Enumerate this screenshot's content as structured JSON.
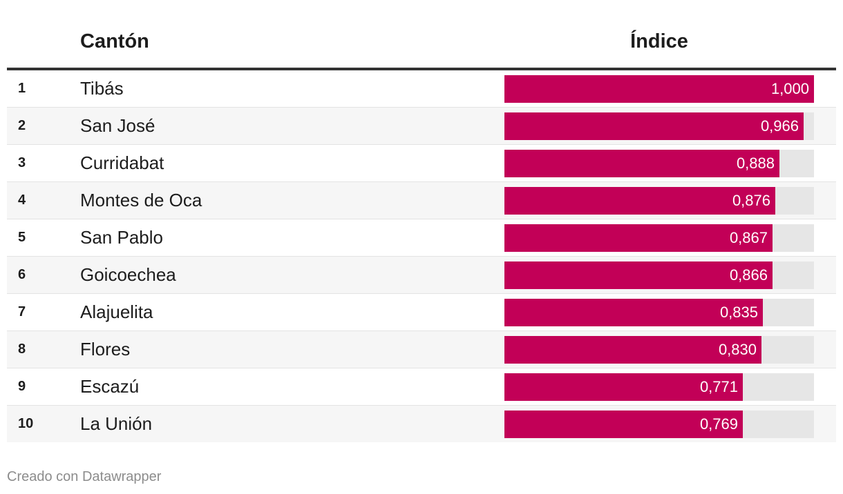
{
  "chart_data": {
    "type": "table",
    "columns": [
      "",
      "Cantón",
      "Índice"
    ],
    "xlim": [
      0,
      1
    ],
    "bar_color": "#c20057",
    "track_color": "#e6e6e6",
    "rows": [
      {
        "rank": "1",
        "name": "Tibás",
        "value": 1.0,
        "label": "1,000"
      },
      {
        "rank": "2",
        "name": "San José",
        "value": 0.966,
        "label": "0,966"
      },
      {
        "rank": "3",
        "name": "Curridabat",
        "value": 0.888,
        "label": "0,888"
      },
      {
        "rank": "4",
        "name": "Montes de Oca",
        "value": 0.876,
        "label": "0,876"
      },
      {
        "rank": "5",
        "name": "San Pablo",
        "value": 0.867,
        "label": "0,867"
      },
      {
        "rank": "6",
        "name": "Goicoechea",
        "value": 0.866,
        "label": "0,866"
      },
      {
        "rank": "7",
        "name": "Alajuelita",
        "value": 0.835,
        "label": "0,835"
      },
      {
        "rank": "8",
        "name": "Flores",
        "value": 0.83,
        "label": "0,830"
      },
      {
        "rank": "9",
        "name": "Escazú",
        "value": 0.771,
        "label": "0,771"
      },
      {
        "rank": "10",
        "name": "La Unión",
        "value": 0.769,
        "label": "0,769"
      }
    ]
  },
  "footer": "Creado con Datawrapper"
}
